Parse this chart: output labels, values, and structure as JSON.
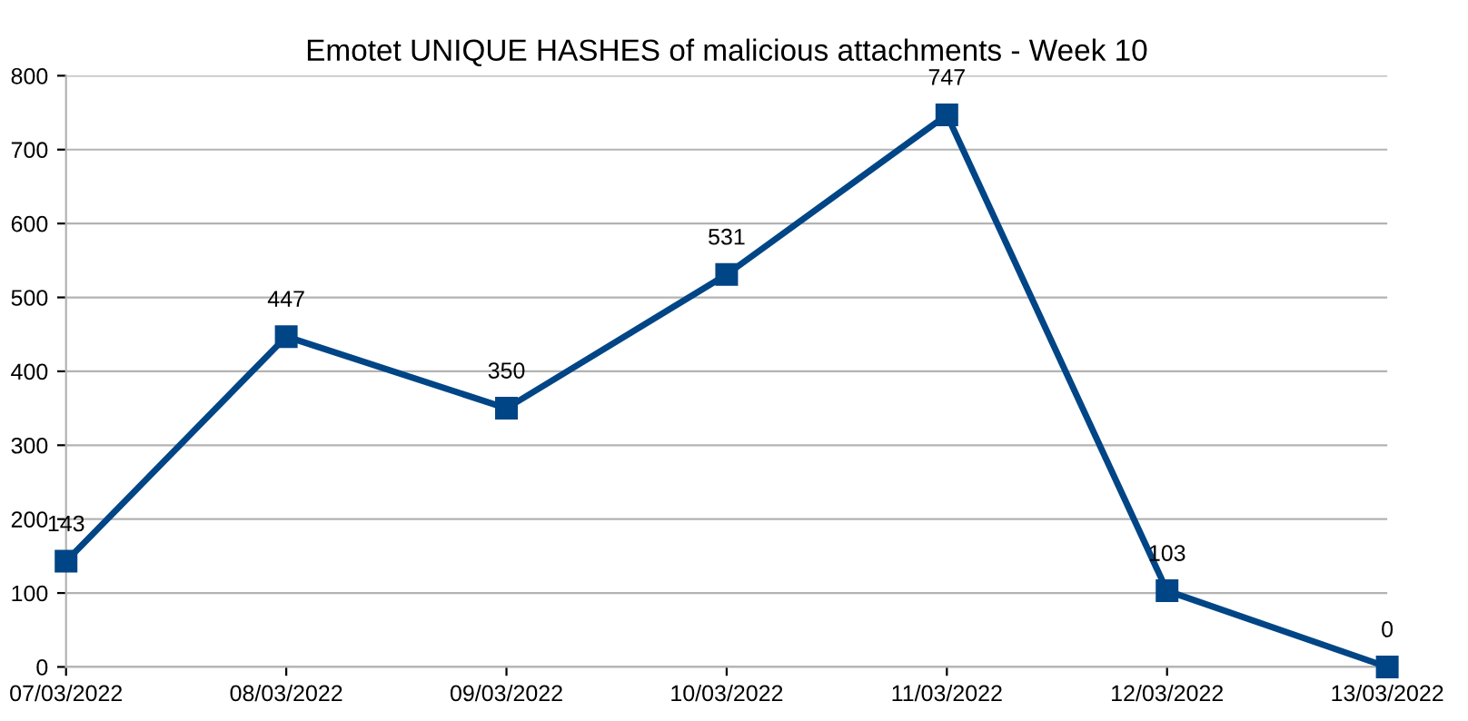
{
  "chart_data": {
    "type": "line",
    "title": "Emotet UNIQUE HASHES of malicious attachments - Week 10",
    "categories": [
      "07/03/2022",
      "08/03/2022",
      "09/03/2022",
      "10/03/2022",
      "11/03/2022",
      "12/03/2022",
      "13/03/2022"
    ],
    "series": [
      {
        "color": "#004586",
        "values": [
          143,
          447,
          350,
          531,
          747,
          103,
          0
        ]
      }
    ],
    "ylim": [
      0,
      800
    ],
    "yticks": [
      0,
      100,
      200,
      300,
      400,
      500,
      600,
      700,
      800
    ],
    "grid": "y",
    "marker": "square",
    "line_style": "solid",
    "data_labels": true,
    "legend": false
  }
}
